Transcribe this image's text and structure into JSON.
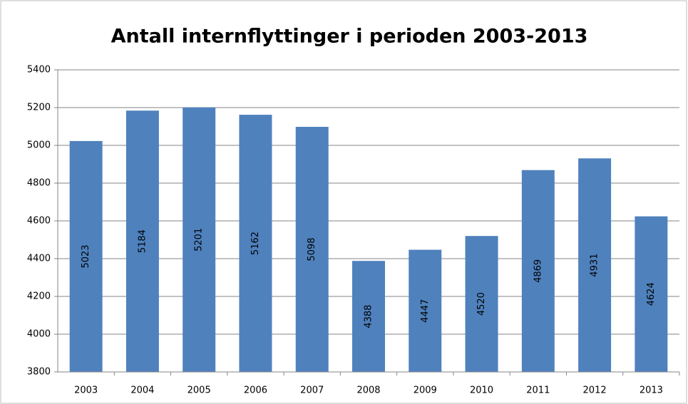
{
  "chart_data": {
    "type": "bar",
    "title": "Antall internflyttinger i perioden 2003-2013",
    "categories": [
      "2003",
      "2004",
      "2005",
      "2006",
      "2007",
      "2008",
      "2009",
      "2010",
      "2011",
      "2012",
      "2013"
    ],
    "values": [
      5023,
      5184,
      5201,
      5162,
      5098,
      4388,
      4447,
      4520,
      4869,
      4931,
      4624
    ],
    "color": "#4f81bd",
    "ylim": [
      3800,
      5400
    ],
    "yticks": [
      3800,
      4000,
      4200,
      4400,
      4600,
      4800,
      5000,
      5200,
      5400
    ],
    "grid": true
  }
}
